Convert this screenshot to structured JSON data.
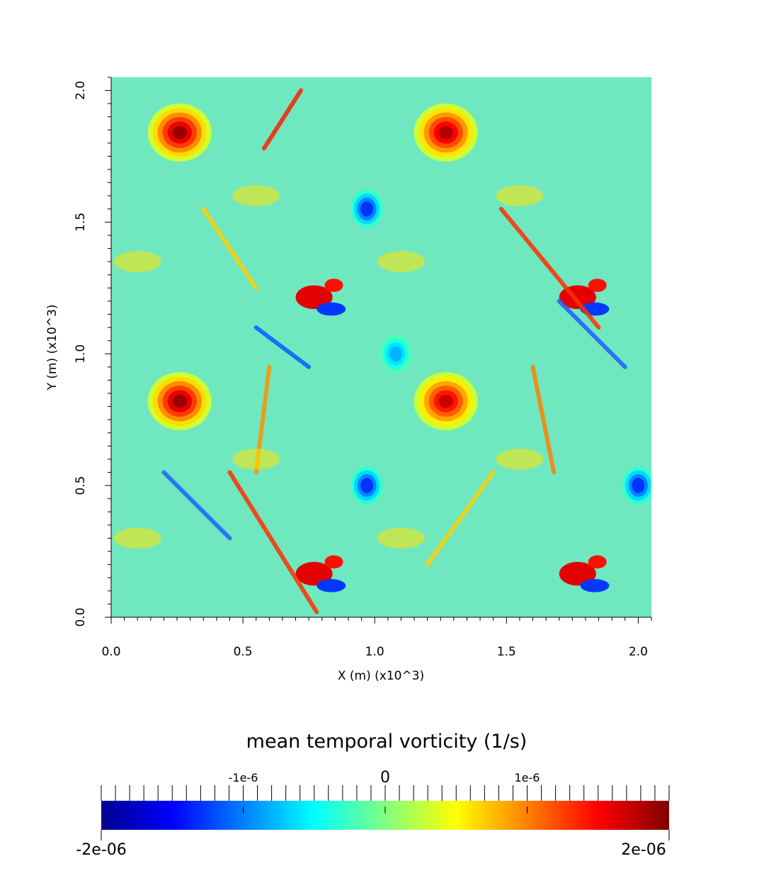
{
  "chart_data": {
    "type": "heatmap",
    "title": "",
    "xlabel": "X (m) (x10^3)",
    "ylabel": "Y (m) (x10^3)",
    "xlim": [
      0.0,
      2.05
    ],
    "ylim": [
      0.0,
      2.05
    ],
    "x_ticks": [
      "0.0",
      "0.5",
      "1.0",
      "1.5",
      "2.0"
    ],
    "y_ticks": [
      "0.0",
      "0.5",
      "1.0",
      "1.5",
      "2.0"
    ],
    "x_tick_values": [
      0.0,
      0.5,
      1.0,
      1.5,
      2.0
    ],
    "y_tick_values": [
      0.0,
      0.5,
      1.0,
      1.5,
      2.0
    ],
    "colormap": "jet",
    "field_description": "periodic doubly-repeating pattern of vortices",
    "features": [
      {
        "kind": "positive_vortex",
        "x": 0.26,
        "y": 1.84,
        "value": 1.9e-06
      },
      {
        "kind": "positive_vortex",
        "x": 1.27,
        "y": 1.84,
        "value": 1.8e-06
      },
      {
        "kind": "positive_vortex",
        "x": 0.26,
        "y": 0.82,
        "value": 1.9e-06
      },
      {
        "kind": "positive_vortex",
        "x": 1.27,
        "y": 0.82,
        "value": 1.7e-06
      },
      {
        "kind": "negative_vortex",
        "x": 0.97,
        "y": 1.55,
        "value": -1.3e-06
      },
      {
        "kind": "negative_vortex",
        "x": 0.97,
        "y": 0.5,
        "value": -1.3e-06
      },
      {
        "kind": "negative_vortex",
        "x": 2.0,
        "y": 0.5,
        "value": -1.3e-06
      },
      {
        "kind": "negative_vortex",
        "x": 1.08,
        "y": 1.0,
        "value": -8e-07
      },
      {
        "kind": "dipole",
        "x": 0.8,
        "y": 1.2,
        "value": 1.6e-06
      },
      {
        "kind": "dipole",
        "x": 1.8,
        "y": 1.2,
        "value": 1.6e-06
      },
      {
        "kind": "dipole",
        "x": 0.8,
        "y": 0.15,
        "value": 1.6e-06
      },
      {
        "kind": "dipole",
        "x": 1.8,
        "y": 0.15,
        "value": 1.6e-06
      }
    ],
    "colorbar": {
      "title": "mean temporal vorticity (1/s)",
      "min": -2e-06,
      "max": 2e-06,
      "min_label": "-2e-06",
      "max_label": "2e-06",
      "tick_labels": [
        "-1e-6",
        "0",
        "1e-6"
      ],
      "tick_values": [
        -1e-06,
        0,
        1e-06
      ],
      "minor_tick_count": 41,
      "colors": [
        "#00008f",
        "#0000ff",
        "#0080ff",
        "#00ffff",
        "#80ff80",
        "#ffff00",
        "#ff8000",
        "#ff0000",
        "#800000"
      ]
    }
  }
}
